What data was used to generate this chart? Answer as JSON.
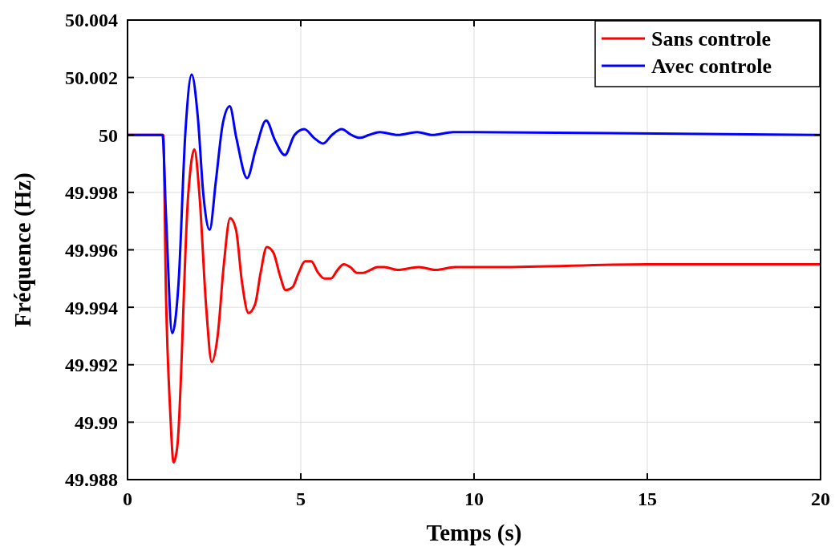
{
  "chart_data": {
    "type": "line",
    "xlabel": "Temps (s)",
    "ylabel": "Fréquence (Hz)",
    "xlim": [
      0,
      20
    ],
    "xticks": [
      0,
      5,
      10,
      15,
      20
    ],
    "ylim": [
      49.988,
      50.004
    ],
    "yticks": [
      49.988,
      49.99,
      49.992,
      49.994,
      49.996,
      49.998,
      50,
      50.002,
      50.004
    ],
    "grid": true,
    "legend": "top right",
    "line_style": "solid",
    "marker": "none",
    "series": [
      {
        "name": "Sans controle",
        "color": "#ff0000",
        "x": [
          0,
          1.03,
          1.11,
          1.23,
          1.33,
          1.44,
          1.75,
          1.93,
          2.07,
          2.27,
          2.43,
          2.6,
          2.78,
          2.96,
          3.13,
          3.3,
          3.49,
          3.68,
          3.84,
          4.02,
          4.21,
          4.4,
          4.56,
          4.76,
          4.94,
          5.12,
          5.3,
          5.5,
          5.68,
          5.87,
          6.06,
          6.24,
          6.43,
          6.62,
          6.8,
          7.01,
          7.21,
          7.41,
          7.8,
          8.4,
          8.9,
          9.45,
          10,
          10.67,
          15,
          20
        ],
        "values": [
          50,
          50,
          49.9944,
          49.9904,
          49.9886,
          49.9892,
          49.9979,
          49.9995,
          49.998,
          49.994,
          49.9921,
          49.993,
          49.9955,
          49.9971,
          49.9967,
          49.9949,
          49.9938,
          49.9941,
          49.9952,
          49.9961,
          49.9959,
          49.9951,
          49.9946,
          49.9947,
          49.9952,
          49.9956,
          49.9956,
          49.9952,
          49.995,
          49.995,
          49.9953,
          49.9955,
          49.9954,
          49.9952,
          49.9952,
          49.9953,
          49.9954,
          49.9954,
          49.9953,
          49.9954,
          49.9953,
          49.9954,
          49.9954,
          49.9954,
          49.9955,
          49.9955
        ]
      },
      {
        "name": "Avec controle",
        "color": "#0000ff",
        "x": [
          0,
          1.01,
          1.11,
          1.29,
          1.47,
          1.67,
          1.85,
          2.03,
          2.19,
          2.37,
          2.55,
          2.75,
          2.95,
          3.14,
          3.45,
          3.7,
          4,
          4.26,
          4.54,
          4.82,
          5.1,
          5.38,
          5.64,
          5.9,
          6.18,
          6.46,
          6.7,
          6.97,
          7.28,
          7.8,
          8.36,
          8.8,
          9.4,
          10,
          20
        ],
        "values": [
          50,
          50,
          49.9972,
          49.9931,
          49.9948,
          50.0001,
          50.0021,
          50.0006,
          49.9979,
          49.9967,
          49.9984,
          50.0004,
          50.001,
          49.9999,
          49.9985,
          49.9995,
          50.0005,
          49.9998,
          49.9993,
          50,
          50.0002,
          49.9999,
          49.9997,
          50,
          50.0002,
          50,
          49.9999,
          50,
          50.0001,
          50,
          50.0001,
          50,
          50.0001,
          50.0001,
          50
        ]
      }
    ]
  }
}
